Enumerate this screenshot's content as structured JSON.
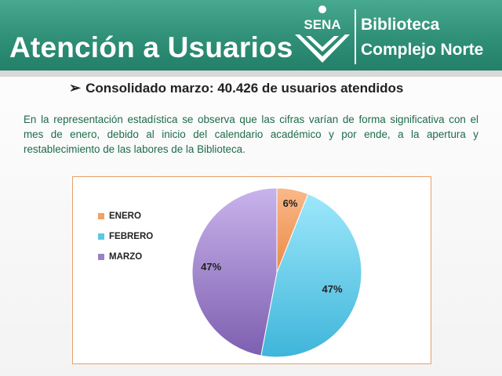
{
  "header": {
    "title": "Atención a Usuarios",
    "logo_text": "SENA",
    "org_line1": "Biblioteca",
    "org_line2": "Complejo Norte"
  },
  "subheading": {
    "bullet": "➢",
    "text": "Consolidado marzo: 40.426 de usuarios atendidos"
  },
  "body_text": "En la representación estadística  se observa que las cifras varían de forma significativa con el mes de enero, debido al inicio del calendario académico y por ende, a la apertura y restablecimiento de las labores de la Biblioteca.",
  "colors": {
    "header": "#2f8f77",
    "enero": "#f4a062",
    "febrero": "#5cc6e6",
    "marzo": "#9b7fc8",
    "chart_border": "#e8a06a"
  },
  "chart_data": {
    "type": "pie",
    "categories": [
      "ENERO",
      "FEBRERO",
      "MARZO"
    ],
    "values": [
      6,
      47,
      47
    ],
    "data_labels": [
      "6%",
      "47%",
      "47%"
    ],
    "legend_position": "left"
  }
}
